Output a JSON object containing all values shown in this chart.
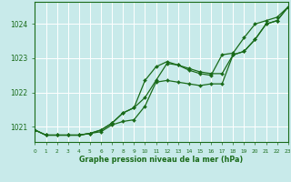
{
  "title": "Graphe pression niveau de la mer (hPa)",
  "bg_color": "#c8eaea",
  "grid_color": "#ffffff",
  "line_color": "#1a6b1a",
  "marker_color": "#1a6b1a",
  "xlim": [
    0,
    23
  ],
  "ylim": [
    1020.55,
    1024.65
  ],
  "yticks": [
    1021,
    1022,
    1023,
    1024
  ],
  "xtick_labels": [
    "0",
    "1",
    "2",
    "3",
    "4",
    "5",
    "6",
    "7",
    "8",
    "9",
    "10",
    "11",
    "12",
    "13",
    "14",
    "15",
    "16",
    "17",
    "18",
    "19",
    "20",
    "21",
    "22",
    "23"
  ],
  "hours": [
    0,
    1,
    2,
    3,
    4,
    5,
    6,
    7,
    8,
    9,
    10,
    11,
    12,
    13,
    14,
    15,
    16,
    17,
    18,
    19,
    20,
    21,
    22,
    23
  ],
  "series1": [
    1020.9,
    1020.75,
    1020.75,
    1020.75,
    1020.75,
    1020.8,
    1020.85,
    1021.05,
    1021.15,
    1021.2,
    1021.6,
    1022.3,
    1022.35,
    1022.3,
    1022.25,
    1022.2,
    1022.25,
    1022.25,
    1023.1,
    1023.2,
    1023.55,
    1024.0,
    1024.1,
    1024.5
  ],
  "series2": [
    1020.9,
    1020.75,
    1020.75,
    1020.75,
    1020.75,
    1020.8,
    1020.9,
    1021.1,
    1021.4,
    1021.55,
    1022.35,
    1022.75,
    1022.9,
    1022.8,
    1022.7,
    1022.6,
    1022.55,
    1022.55,
    1023.1,
    1023.2,
    1023.55,
    1024.0,
    1024.1,
    1024.5
  ],
  "series3": [
    1020.9,
    1020.75,
    1020.75,
    1020.75,
    1020.75,
    1020.8,
    1020.9,
    1021.1,
    1021.4,
    1021.55,
    1021.85,
    1022.35,
    1022.85,
    1022.8,
    1022.65,
    1022.55,
    1022.5,
    1023.1,
    1023.15,
    1023.6,
    1024.0,
    1024.1,
    1024.2,
    1024.5
  ]
}
